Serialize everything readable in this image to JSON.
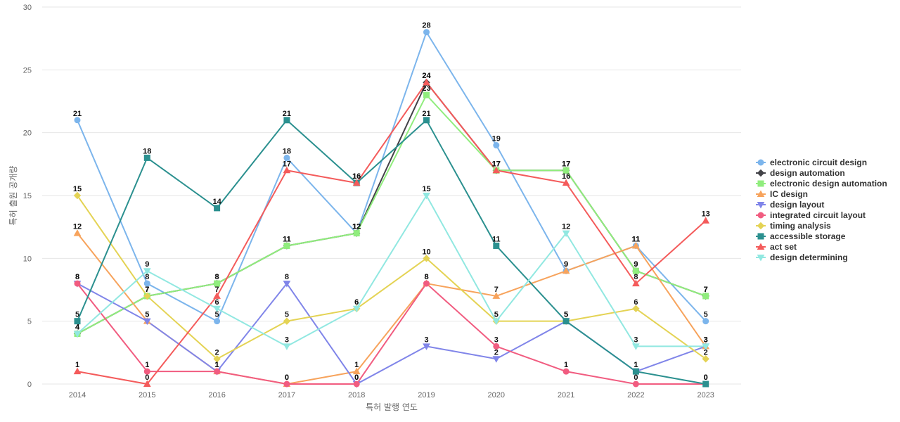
{
  "chart_data": {
    "type": "line",
    "xlabel": "특허 발행 연도",
    "ylabel": "특허 출원 공개량",
    "ylim": [
      0,
      30
    ],
    "yticks": [
      0,
      5,
      10,
      15,
      20,
      25,
      30
    ],
    "grid": true,
    "legend_position": "right",
    "categories": [
      "2014",
      "2015",
      "2016",
      "2017",
      "2018",
      "2019",
      "2020",
      "2021",
      "2022",
      "2023"
    ],
    "series": [
      {
        "name": "electronic circuit design",
        "color": "#7cb5ec",
        "marker": "circle",
        "values": [
          21,
          8,
          5,
          18,
          12,
          28,
          19,
          9,
          11,
          5
        ]
      },
      {
        "name": "design automation",
        "color": "#434348",
        "marker": "diamond",
        "values": [
          4,
          7,
          8,
          11,
          12,
          24,
          17,
          17,
          9,
          7
        ]
      },
      {
        "name": "electronic design automation",
        "color": "#90ed7d",
        "marker": "square",
        "values": [
          4,
          7,
          8,
          11,
          12,
          23,
          17,
          17,
          9,
          7
        ]
      },
      {
        "name": "IC design",
        "color": "#f7a35c",
        "marker": "triangle",
        "values": [
          12,
          5,
          1,
          0,
          1,
          8,
          7,
          9,
          11,
          3
        ]
      },
      {
        "name": "design layout",
        "color": "#8085e9",
        "marker": "triangle-down",
        "values": [
          8,
          5,
          1,
          8,
          0,
          3,
          2,
          5,
          1,
          3
        ]
      },
      {
        "name": "integrated circuit layout",
        "color": "#f15c80",
        "marker": "circle",
        "values": [
          8,
          1,
          1,
          0,
          0,
          8,
          3,
          1,
          0,
          0
        ]
      },
      {
        "name": "timing analysis",
        "color": "#e4d354",
        "marker": "diamond",
        "values": [
          15,
          7,
          2,
          5,
          6,
          10,
          5,
          5,
          6,
          2
        ]
      },
      {
        "name": "accessible storage",
        "color": "#2b908f",
        "marker": "square",
        "values": [
          5,
          18,
          14,
          21,
          16,
          21,
          11,
          5,
          1,
          0
        ]
      },
      {
        "name": "act set",
        "color": "#f45b5b",
        "marker": "triangle",
        "values": [
          1,
          0,
          7,
          17,
          16,
          24,
          17,
          16,
          8,
          13
        ]
      },
      {
        "name": "design determining",
        "color": "#91e8e1",
        "marker": "triangle-down",
        "values": [
          4,
          9,
          6,
          3,
          6,
          15,
          5,
          12,
          3,
          3
        ]
      }
    ]
  }
}
